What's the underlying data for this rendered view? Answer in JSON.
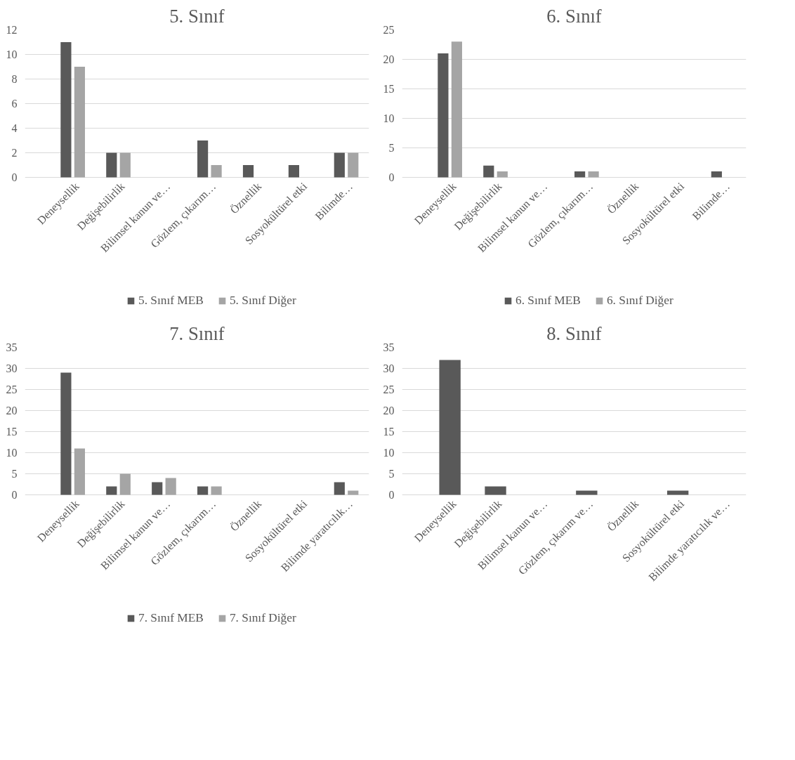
{
  "chart_data": [
    {
      "type": "bar",
      "title": "5. Sınıf",
      "categories": [
        "Deneysellik",
        "Değişebilirlik",
        "Bilimsel kanun ve…",
        "Gözlem, çıkarım…",
        "Öznellik",
        "Sosyokültürel etki",
        "Bilimde…"
      ],
      "series": [
        {
          "name": "5. Sınıf MEB",
          "color": "#595959",
          "values": [
            11,
            2,
            0,
            3,
            1,
            1,
            2
          ]
        },
        {
          "name": "5. Sınıf Diğer",
          "color": "#a5a5a5",
          "values": [
            9,
            2,
            0,
            1,
            0,
            0,
            2
          ]
        }
      ],
      "ylim": [
        0,
        12
      ],
      "yticks": [
        0,
        2,
        4,
        6,
        8,
        10,
        12
      ],
      "grid": "y",
      "legend": "bottom"
    },
    {
      "type": "bar",
      "title": "6. Sınıf",
      "categories": [
        "Deneysellik",
        "Değişebilirlik",
        "Bilimsel kanun ve…",
        "Gözlem, çıkarım…",
        "Öznellik",
        "Sosyokültürel etki",
        "Bilimde…"
      ],
      "series": [
        {
          "name": "6. Sınıf MEB",
          "color": "#595959",
          "values": [
            21,
            2,
            0,
            1,
            0,
            0,
            1
          ]
        },
        {
          "name": "6. Sınıf Diğer",
          "color": "#a5a5a5",
          "values": [
            23,
            1,
            0,
            1,
            0,
            0,
            0
          ]
        }
      ],
      "ylim": [
        0,
        25
      ],
      "yticks": [
        0,
        5,
        10,
        15,
        20,
        25
      ],
      "grid": "y",
      "legend": "bottom"
    },
    {
      "type": "bar",
      "title": "7. Sınıf",
      "categories": [
        "Deneysellik",
        "Değişebilirlik",
        "Bilimsel kanun ve…",
        "Gözlem, çıkarım…",
        "Öznellik",
        "Sosyokültürel etki",
        "Bilimde yaratıcılık…"
      ],
      "series": [
        {
          "name": "7. Sınıf MEB",
          "color": "#595959",
          "values": [
            29,
            2,
            3,
            2,
            0,
            0,
            3
          ]
        },
        {
          "name": "7. Sınıf Diğer",
          "color": "#a5a5a5",
          "values": [
            11,
            5,
            4,
            2,
            0,
            0,
            1
          ]
        }
      ],
      "ylim": [
        0,
        35
      ],
      "yticks": [
        0,
        5,
        10,
        15,
        20,
        25,
        30,
        35
      ],
      "grid": "y",
      "legend": "bottom"
    },
    {
      "type": "bar",
      "title": "8. Sınıf",
      "categories": [
        "Deneysellik",
        "Değişebilirlik",
        "Bilimsel kanun ve…",
        "Gözlem, çıkarım ve…",
        "Öznellik",
        "Sosyokültürel etki",
        "Bilimde yaratıcılık ve…"
      ],
      "series": [
        {
          "color": "#595959",
          "values": [
            32,
            2,
            0,
            1,
            0,
            1,
            0
          ]
        }
      ],
      "ylim": [
        0,
        35
      ],
      "yticks": [
        0,
        5,
        10,
        15,
        20,
        25,
        30,
        35
      ],
      "grid": "y"
    }
  ]
}
